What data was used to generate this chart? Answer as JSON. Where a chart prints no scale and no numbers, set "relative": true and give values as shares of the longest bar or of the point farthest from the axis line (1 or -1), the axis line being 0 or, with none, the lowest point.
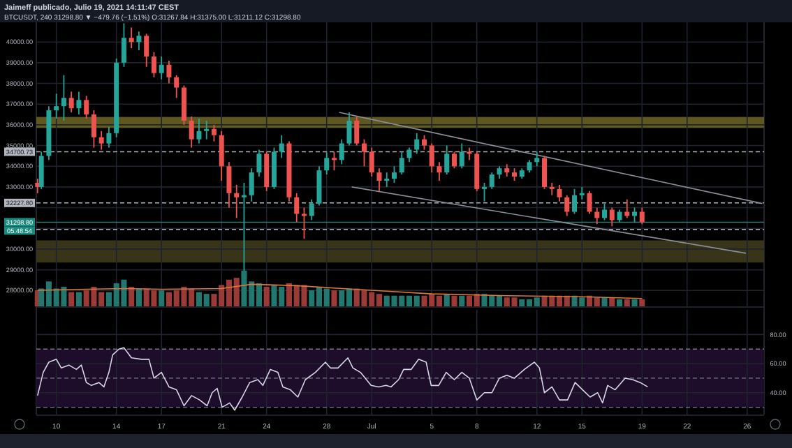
{
  "chart_data": [
    {
      "type": "candlestick",
      "title": "Jaimeff publicado, Julio 19, 2021 14:11:47 CEST",
      "subtitle": "BTCUSDT, 240 31298.80 ▼ −479.76 (−1.51%) O:31267.84 H:31375.00 L:31211.12 C:31298.80",
      "x": [
        "2021-06-08T18:00",
        "2021-06-09T00:00",
        "2021-06-09T12:00",
        "2021-06-10T00:00",
        "2021-06-10T12:00",
        "2021-06-11T00:00",
        "2021-06-11T12:00",
        "2021-06-12T00:00",
        "2021-06-12T12:00",
        "2021-06-13T00:00",
        "2021-06-13T12:00",
        "2021-06-14T00:00",
        "2021-06-14T12:00",
        "2021-06-15T00:00",
        "2021-06-15T12:00",
        "2021-06-16T00:00",
        "2021-06-16T12:00",
        "2021-06-17T00:00",
        "2021-06-17T12:00",
        "2021-06-18T00:00",
        "2021-06-18T12:00",
        "2021-06-19T00:00",
        "2021-06-19T12:00",
        "2021-06-20T00:00",
        "2021-06-20T12:00",
        "2021-06-21T00:00",
        "2021-06-21T12:00",
        "2021-06-22T00:00",
        "2021-06-22T12:00",
        "2021-06-23T00:00",
        "2021-06-23T12:00",
        "2021-06-24T00:00",
        "2021-06-24T12:00",
        "2021-06-25T00:00",
        "2021-06-25T12:00",
        "2021-06-26T00:00",
        "2021-06-26T12:00",
        "2021-06-27T00:00",
        "2021-06-27T12:00",
        "2021-06-28T00:00",
        "2021-06-28T12:00",
        "2021-06-29T00:00",
        "2021-06-29T12:00",
        "2021-06-30T00:00",
        "2021-06-30T12:00",
        "2021-07-01T00:00",
        "2021-07-01T12:00",
        "2021-07-02T00:00",
        "2021-07-02T12:00",
        "2021-07-03T00:00",
        "2021-07-03T12:00",
        "2021-07-04T00:00",
        "2021-07-04T12:00",
        "2021-07-05T00:00",
        "2021-07-05T12:00",
        "2021-07-06T00:00",
        "2021-07-06T12:00",
        "2021-07-07T00:00",
        "2021-07-07T12:00",
        "2021-07-08T00:00",
        "2021-07-08T12:00",
        "2021-07-09T00:00",
        "2021-07-09T12:00",
        "2021-07-10T00:00",
        "2021-07-10T12:00",
        "2021-07-11T00:00",
        "2021-07-11T12:00",
        "2021-07-12T00:00",
        "2021-07-12T12:00",
        "2021-07-13T00:00",
        "2021-07-13T12:00",
        "2021-07-14T00:00",
        "2021-07-14T12:00",
        "2021-07-15T00:00",
        "2021-07-15T12:00",
        "2021-07-16T00:00",
        "2021-07-16T12:00",
        "2021-07-17T00:00",
        "2021-07-17T12:00",
        "2021-07-18T00:00",
        "2021-07-18T12:00",
        "2021-07-19T00:00"
      ],
      "ohlc": [
        [
          33200,
          33400,
          32700,
          33000
        ],
        [
          33000,
          34700,
          32900,
          34500
        ],
        [
          34500,
          36900,
          34300,
          36700
        ],
        [
          36700,
          37500,
          36300,
          36900
        ],
        [
          36900,
          38400,
          36200,
          37300
        ],
        [
          37300,
          37600,
          36600,
          36800
        ],
        [
          36800,
          37600,
          36500,
          37200
        ],
        [
          37200,
          37400,
          36300,
          36500
        ],
        [
          36500,
          36700,
          34900,
          35400
        ],
        [
          35400,
          35700,
          34800,
          35100
        ],
        [
          35100,
          35900,
          34900,
          35600
        ],
        [
          35600,
          39200,
          35400,
          39000
        ],
        [
          39000,
          40900,
          38800,
          40200
        ],
        [
          40200,
          40700,
          39700,
          40000
        ],
        [
          40000,
          40500,
          39600,
          40300
        ],
        [
          40300,
          40400,
          38800,
          39300
        ],
        [
          39300,
          39500,
          38300,
          38500
        ],
        [
          38500,
          39300,
          38200,
          38900
        ],
        [
          38900,
          39100,
          38000,
          38300
        ],
        [
          38300,
          38400,
          37300,
          37800
        ],
        [
          37800,
          37900,
          36000,
          36200
        ],
        [
          36200,
          36400,
          34900,
          35300
        ],
        [
          35300,
          36300,
          35100,
          35700
        ],
        [
          35700,
          36200,
          35300,
          35800
        ],
        [
          35800,
          36000,
          35200,
          35500
        ],
        [
          35500,
          35700,
          33300,
          34000
        ],
        [
          34000,
          34200,
          32000,
          32700
        ],
        [
          32700,
          33100,
          31500,
          32500
        ],
        [
          32500,
          33200,
          28800,
          32600
        ],
        [
          32600,
          33900,
          32300,
          33700
        ],
        [
          33700,
          34800,
          33500,
          34600
        ],
        [
          34600,
          34700,
          32800,
          33000
        ],
        [
          33000,
          34900,
          32900,
          34700
        ],
        [
          34700,
          35500,
          34400,
          35100
        ],
        [
          35100,
          35200,
          32300,
          32500
        ],
        [
          32500,
          32700,
          31300,
          31700
        ],
        [
          31700,
          32000,
          30500,
          31600
        ],
        [
          31600,
          32400,
          31400,
          32200
        ],
        [
          32200,
          34000,
          32100,
          33800
        ],
        [
          33800,
          34700,
          33600,
          34400
        ],
        [
          34400,
          34700,
          33800,
          34300
        ],
        [
          34300,
          35300,
          34100,
          35100
        ],
        [
          35100,
          36600,
          35000,
          36200
        ],
        [
          36200,
          36400,
          35000,
          35100
        ],
        [
          35100,
          35300,
          34000,
          34700
        ],
        [
          34700,
          34900,
          33500,
          33700
        ],
        [
          33700,
          33900,
          32800,
          33300
        ],
        [
          33300,
          33700,
          33000,
          33400
        ],
        [
          33400,
          34000,
          33200,
          33700
        ],
        [
          33700,
          34700,
          33600,
          34400
        ],
        [
          34400,
          34900,
          34200,
          34800
        ],
        [
          34800,
          35600,
          34600,
          35300
        ],
        [
          35300,
          35500,
          34800,
          35000
        ],
        [
          35000,
          35100,
          33700,
          34000
        ],
        [
          34000,
          34200,
          33300,
          33700
        ],
        [
          33700,
          35000,
          33600,
          34600
        ],
        [
          34600,
          34700,
          33900,
          34000
        ],
        [
          34000,
          35100,
          33900,
          34700
        ],
        [
          34700,
          34900,
          34300,
          34600
        ],
        [
          34600,
          34700,
          32800,
          32900
        ],
        [
          32900,
          33200,
          32300,
          33000
        ],
        [
          33000,
          33700,
          32900,
          33600
        ],
        [
          33600,
          34000,
          33400,
          33900
        ],
        [
          33900,
          34100,
          33500,
          33700
        ],
        [
          33700,
          33900,
          33300,
          33500
        ],
        [
          33500,
          33900,
          33400,
          33800
        ],
        [
          33800,
          34300,
          33700,
          34200
        ],
        [
          34200,
          34700,
          34000,
          34400
        ],
        [
          34400,
          34500,
          32900,
          33000
        ],
        [
          33000,
          33200,
          32600,
          32900
        ],
        [
          32900,
          33100,
          32300,
          32500
        ],
        [
          32500,
          32600,
          31600,
          31800
        ],
        [
          31800,
          32900,
          31700,
          32600
        ],
        [
          32600,
          33000,
          32400,
          32700
        ],
        [
          32700,
          32800,
          31700,
          31800
        ],
        [
          31800,
          32000,
          31200,
          31500
        ],
        [
          31500,
          32200,
          31400,
          31900
        ],
        [
          31900,
          32000,
          31100,
          31400
        ],
        [
          31400,
          31900,
          31300,
          31800
        ],
        [
          31800,
          32400,
          31500,
          31600
        ],
        [
          31600,
          32000,
          31300,
          31800
        ],
        [
          31800,
          32000,
          31200,
          31298.8
        ]
      ],
      "series": [
        {
          "type": "line",
          "x": [
            "2021-06-28T20:00",
            "2021-07-27T00:00"
          ],
          "values": [
            36600,
            32200
          ],
          "color": "#8a8d96"
        },
        {
          "type": "line",
          "x": [
            "2021-06-29T16:00",
            "2021-07-25T22:00"
          ],
          "values": [
            33000,
            29800
          ],
          "color": "#8a8d96"
        }
      ],
      "xlim": [
        "2021-06-08T16:00",
        "2021-07-27T03:00"
      ],
      "ylim": [
        27200,
        40950
      ],
      "xticks": [
        {
          "value": "2021-06-10",
          "label": null
        },
        {
          "value": "2021-06-14",
          "label": null
        },
        {
          "value": "2021-06-17",
          "label": null
        },
        {
          "value": "2021-06-21",
          "label": null
        },
        {
          "value": "2021-06-24",
          "label": null
        },
        {
          "value": "2021-06-28",
          "label": null
        },
        {
          "value": "2021-07-01",
          "label": null
        },
        {
          "value": "2021-07-05",
          "label": null
        },
        {
          "value": "2021-07-08",
          "label": null
        },
        {
          "value": "2021-07-12",
          "label": null
        },
        {
          "value": "2021-07-15",
          "label": null
        },
        {
          "value": "2021-07-19",
          "label": null
        },
        {
          "value": "2021-07-22",
          "label": null
        },
        {
          "value": "2021-07-26",
          "label": null
        }
      ],
      "yticks": [
        {
          "value": 28000,
          "label": "28000.00"
        },
        {
          "value": 29000,
          "label": "29000.00"
        },
        {
          "value": 30000,
          "label": "30000.00"
        },
        {
          "value": 31000,
          "label": null
        },
        {
          "value": 32000,
          "label": null
        },
        {
          "value": 33000,
          "label": "33000.00"
        },
        {
          "value": 34000,
          "label": "34000.00"
        },
        {
          "value": 35000,
          "label": "35000.00"
        },
        {
          "value": 36000,
          "label": "36000.00"
        },
        {
          "value": 37000,
          "label": "37000.00"
        },
        {
          "value": 38000,
          "label": "38000.00"
        },
        {
          "value": 39000,
          "label": "39000.00"
        },
        {
          "value": 40000,
          "label": "40000.00"
        }
      ],
      "tick_labels": "y",
      "grid": true,
      "bands": [
        {
          "axis": "y",
          "from": 35850,
          "to": 36380,
          "color": "#5e5820"
        },
        {
          "axis": "y",
          "from": 29350,
          "to": 30420,
          "color": "#38341a"
        }
      ],
      "ref_lines": [
        {
          "axis": "y",
          "value": 34700.73,
          "label": "34700.73",
          "color": "#b2b5be",
          "line_style": "dashed"
        },
        {
          "axis": "y",
          "value": 32227.8,
          "label": "32227.80",
          "color": "#b2b5be",
          "line_style": "dashed"
        },
        {
          "axis": "y",
          "value": 30950,
          "label": null,
          "color": "#b2b5be",
          "line_style": "dashed"
        },
        {
          "axis": "y",
          "value": 31298.8,
          "label": "31298.80",
          "color": "#1d8a80",
          "line_style": "solid"
        }
      ],
      "annotations": [
        "05:48:54"
      ]
    },
    {
      "type": "bar",
      "relative": true,
      "tick_labels": false,
      "xlim": [
        "2021-06-08T16:00",
        "2021-07-27T03:00"
      ],
      "x": [
        "2021-06-08T18:00",
        "2021-06-09T00:00",
        "2021-06-09T12:00",
        "2021-06-10T00:00",
        "2021-06-10T12:00",
        "2021-06-11T00:00",
        "2021-06-11T12:00",
        "2021-06-12T00:00",
        "2021-06-12T12:00",
        "2021-06-13T00:00",
        "2021-06-13T12:00",
        "2021-06-14T00:00",
        "2021-06-14T12:00",
        "2021-06-15T00:00",
        "2021-06-15T12:00",
        "2021-06-16T00:00",
        "2021-06-16T12:00",
        "2021-06-17T00:00",
        "2021-06-17T12:00",
        "2021-06-18T00:00",
        "2021-06-18T12:00",
        "2021-06-19T00:00",
        "2021-06-19T12:00",
        "2021-06-20T00:00",
        "2021-06-20T12:00",
        "2021-06-21T00:00",
        "2021-06-21T12:00",
        "2021-06-22T00:00",
        "2021-06-22T12:00",
        "2021-06-23T00:00",
        "2021-06-23T12:00",
        "2021-06-24T00:00",
        "2021-06-24T12:00",
        "2021-06-25T00:00",
        "2021-06-25T12:00",
        "2021-06-26T00:00",
        "2021-06-26T12:00",
        "2021-06-27T00:00",
        "2021-06-27T12:00",
        "2021-06-28T00:00",
        "2021-06-28T12:00",
        "2021-06-29T00:00",
        "2021-06-29T12:00",
        "2021-06-30T00:00",
        "2021-06-30T12:00",
        "2021-07-01T00:00",
        "2021-07-01T12:00",
        "2021-07-02T00:00",
        "2021-07-02T12:00",
        "2021-07-03T00:00",
        "2021-07-03T12:00",
        "2021-07-04T00:00",
        "2021-07-04T12:00",
        "2021-07-05T00:00",
        "2021-07-05T12:00",
        "2021-07-06T00:00",
        "2021-07-06T12:00",
        "2021-07-07T00:00",
        "2021-07-07T12:00",
        "2021-07-08T00:00",
        "2021-07-08T12:00",
        "2021-07-09T00:00",
        "2021-07-09T12:00",
        "2021-07-10T00:00",
        "2021-07-10T12:00",
        "2021-07-11T00:00",
        "2021-07-11T12:00",
        "2021-07-12T00:00",
        "2021-07-12T12:00",
        "2021-07-13T00:00",
        "2021-07-13T12:00",
        "2021-07-14T00:00",
        "2021-07-14T12:00",
        "2021-07-15T00:00",
        "2021-07-15T12:00",
        "2021-07-16T00:00",
        "2021-07-16T12:00",
        "2021-07-17T00:00",
        "2021-07-17T12:00",
        "2021-07-18T00:00",
        "2021-07-18T12:00",
        "2021-07-19T00:00"
      ],
      "series": [
        {
          "type": "bar",
          "values": [
            0.45,
            0.5,
            0.7,
            0.5,
            0.55,
            0.4,
            0.4,
            0.45,
            0.55,
            0.4,
            0.4,
            0.65,
            0.75,
            0.55,
            0.5,
            0.5,
            0.45,
            0.45,
            0.4,
            0.45,
            0.55,
            0.5,
            0.4,
            0.35,
            0.35,
            0.6,
            0.75,
            0.8,
            1,
            0.7,
            0.65,
            0.55,
            0.6,
            0.55,
            0.65,
            0.6,
            0.6,
            0.45,
            0.55,
            0.5,
            0.45,
            0.45,
            0.5,
            0.5,
            0.45,
            0.4,
            0.35,
            0.3,
            0.3,
            0.3,
            0.3,
            0.3,
            0.3,
            0.35,
            0.3,
            0.35,
            0.3,
            0.3,
            0.3,
            0.35,
            0.35,
            0.3,
            0.3,
            0.25,
            0.25,
            0.2,
            0.2,
            0.25,
            0.3,
            0.3,
            0.3,
            0.3,
            0.3,
            0.25,
            0.3,
            0.25,
            0.25,
            0.25,
            0.2,
            0.2,
            0.2,
            0.2
          ],
          "colors": [
            "#9b3b38",
            "#22786f",
            "#22786f",
            "#22786f",
            "#22786f",
            "#9b3b38",
            "#22786f",
            "#9b3b38",
            "#9b3b38",
            "#9b3b38",
            "#22786f",
            "#22786f",
            "#22786f",
            "#9b3b38",
            "#22786f",
            "#9b3b38",
            "#9b3b38",
            "#22786f",
            "#9b3b38",
            "#9b3b38",
            "#9b3b38",
            "#9b3b38",
            "#22786f",
            "#22786f",
            "#9b3b38",
            "#9b3b38",
            "#9b3b38",
            "#9b3b38",
            "#22786f",
            "#22786f",
            "#22786f",
            "#9b3b38",
            "#22786f",
            "#22786f",
            "#9b3b38",
            "#9b3b38",
            "#9b3b38",
            "#22786f",
            "#22786f",
            "#22786f",
            "#9b3b38",
            "#22786f",
            "#22786f",
            "#9b3b38",
            "#9b3b38",
            "#9b3b38",
            "#9b3b38",
            "#22786f",
            "#22786f",
            "#22786f",
            "#22786f",
            "#22786f",
            "#9b3b38",
            "#9b3b38",
            "#9b3b38",
            "#22786f",
            "#9b3b38",
            "#22786f",
            "#9b3b38",
            "#9b3b38",
            "#22786f",
            "#22786f",
            "#22786f",
            "#9b3b38",
            "#9b3b38",
            "#22786f",
            "#22786f",
            "#22786f",
            "#9b3b38",
            "#9b3b38",
            "#9b3b38",
            "#9b3b38",
            "#22786f",
            "#22786f",
            "#9b3b38",
            "#9b3b38",
            "#22786f",
            "#9b3b38",
            "#22786f",
            "#9b3b38",
            "#22786f",
            "#9b3b38"
          ]
        },
        {
          "type": "line",
          "x": [
            "2021-06-08T18:00",
            "2021-06-12T00:00",
            "2021-06-14T12:00",
            "2021-06-17T00:00",
            "2021-06-21T00:00",
            "2021-06-23T00:00",
            "2021-06-26T00:00",
            "2021-07-01T00:00",
            "2021-07-05T00:00",
            "2021-07-10T00:00",
            "2021-07-15T00:00",
            "2021-07-19T00:00"
          ],
          "values": [
            0.45,
            0.48,
            0.5,
            0.48,
            0.5,
            0.62,
            0.58,
            0.45,
            0.35,
            0.3,
            0.27,
            0.22
          ],
          "color": "#d9773c"
        }
      ]
    },
    {
      "type": "line",
      "xlim": [
        "2021-06-08T16:00",
        "2021-07-27T03:00"
      ],
      "ylim": [
        25,
        97
      ],
      "xticks": [
        {
          "value": "2021-06-10",
          "label": "10"
        },
        {
          "value": "2021-06-14",
          "label": "14"
        },
        {
          "value": "2021-06-17",
          "label": "17"
        },
        {
          "value": "2021-06-21",
          "label": "21"
        },
        {
          "value": "2021-06-24",
          "label": "24"
        },
        {
          "value": "2021-06-28",
          "label": "28"
        },
        {
          "value": "2021-07-01",
          "label": "Jul"
        },
        {
          "value": "2021-07-05",
          "label": "5"
        },
        {
          "value": "2021-07-08",
          "label": "8"
        },
        {
          "value": "2021-07-12",
          "label": "12"
        },
        {
          "value": "2021-07-15",
          "label": "15"
        },
        {
          "value": "2021-07-19",
          "label": "19"
        },
        {
          "value": "2021-07-22",
          "label": "22"
        },
        {
          "value": "2021-07-26",
          "label": "26"
        }
      ],
      "yticks": [
        {
          "value": 40,
          "label": "40.00"
        },
        {
          "value": 60,
          "label": "60.00"
        },
        {
          "value": 80,
          "label": "80.00"
        }
      ],
      "grid": true,
      "bands": [
        {
          "axis": "y",
          "from": 30,
          "to": 70,
          "color": "#1e0c2b"
        }
      ],
      "ref_lines": [
        {
          "axis": "y",
          "value": 30,
          "label": null,
          "color": "#787b86",
          "line_style": "dashed"
        },
        {
          "axis": "y",
          "value": 50,
          "label": null,
          "color": "#787b86",
          "line_style": "dashed"
        },
        {
          "axis": "y",
          "value": 70,
          "label": null,
          "color": "#787b86",
          "line_style": "dashed"
        }
      ],
      "x": [
        "2021-06-08T18:00",
        "2021-06-09T03:00",
        "2021-06-09T12:00",
        "2021-06-10T00:00",
        "2021-06-10T08:00",
        "2021-06-10T20:00",
        "2021-06-11T08:00",
        "2021-06-11T16:00",
        "2021-06-12T00:00",
        "2021-06-12T08:00",
        "2021-06-12T20:00",
        "2021-06-13T04:00",
        "2021-06-13T12:00",
        "2021-06-13T18:00",
        "2021-06-14T04:00",
        "2021-06-14T12:00",
        "2021-06-15T00:00",
        "2021-06-15T16:00",
        "2021-06-16T04:00",
        "2021-06-16T12:00",
        "2021-06-17T00:00",
        "2021-06-17T12:00",
        "2021-06-18T00:00",
        "2021-06-18T12:00",
        "2021-06-19T00:00",
        "2021-06-19T13:00",
        "2021-06-20T01:00",
        "2021-06-20T09:00",
        "2021-06-20T17:00",
        "2021-06-21T01:00",
        "2021-06-21T13:00",
        "2021-06-21T21:00",
        "2021-06-22T09:00",
        "2021-06-22T21:00",
        "2021-06-23T10:00",
        "2021-06-23T18:00",
        "2021-06-24T06:00",
        "2021-06-24T18:00",
        "2021-06-25T02:00",
        "2021-06-25T14:00",
        "2021-06-26T02:00",
        "2021-06-26T14:00",
        "2021-06-27T06:00",
        "2021-06-27T22:00",
        "2021-06-28T06:00",
        "2021-06-28T18:00",
        "2021-06-29T10:00",
        "2021-06-29T18:00",
        "2021-06-30T06:00",
        "2021-06-30T23:00",
        "2021-07-01T11:00",
        "2021-07-01T23:00",
        "2021-07-02T07:00",
        "2021-07-02T19:00",
        "2021-07-03T03:00",
        "2021-07-03T15:00",
        "2021-07-04T03:00",
        "2021-07-04T15:00",
        "2021-07-04T23:00",
        "2021-07-05T11:00",
        "2021-07-05T23:00",
        "2021-07-06T12:00",
        "2021-07-07T00:00",
        "2021-07-07T12:00",
        "2021-07-08T00:00",
        "2021-07-08T12:00",
        "2021-07-09T00:00",
        "2021-07-09T12:00",
        "2021-07-10T00:00",
        "2021-07-10T12:00",
        "2021-07-11T04:00",
        "2021-07-11T20:00",
        "2021-07-12T04:00",
        "2021-07-12T12:00",
        "2021-07-13T00:00",
        "2021-07-13T12:00",
        "2021-07-14T01:00",
        "2021-07-14T13:00",
        "2021-07-15T01:00",
        "2021-07-15T13:00",
        "2021-07-16T01:00",
        "2021-07-16T09:00",
        "2021-07-16T17:00",
        "2021-07-17T05:00",
        "2021-07-17T21:00",
        "2021-07-18T09:00",
        "2021-07-18T21:00",
        "2021-07-19T09:00"
      ],
      "series": [
        {
          "color": "#d6d6e6",
          "values": [
            38,
            54,
            61,
            63,
            57,
            59,
            56,
            59,
            47,
            45,
            47,
            44,
            54,
            66,
            70,
            71,
            64,
            63,
            63,
            50,
            54,
            44,
            42,
            31,
            38,
            35,
            31,
            40,
            43,
            30,
            33,
            28,
            37,
            47,
            49,
            45,
            56,
            54,
            44,
            42,
            37,
            49,
            54,
            61,
            57,
            57,
            64,
            57,
            54,
            45,
            44,
            45,
            44,
            49,
            56,
            56,
            63,
            61,
            45,
            45,
            54,
            49,
            54,
            50,
            35,
            40,
            40,
            50,
            52,
            50,
            56,
            61,
            57,
            40,
            44,
            35,
            35,
            47,
            42,
            37,
            40,
            33,
            45,
            42,
            50,
            49,
            47,
            44
          ]
        }
      ]
    }
  ]
}
